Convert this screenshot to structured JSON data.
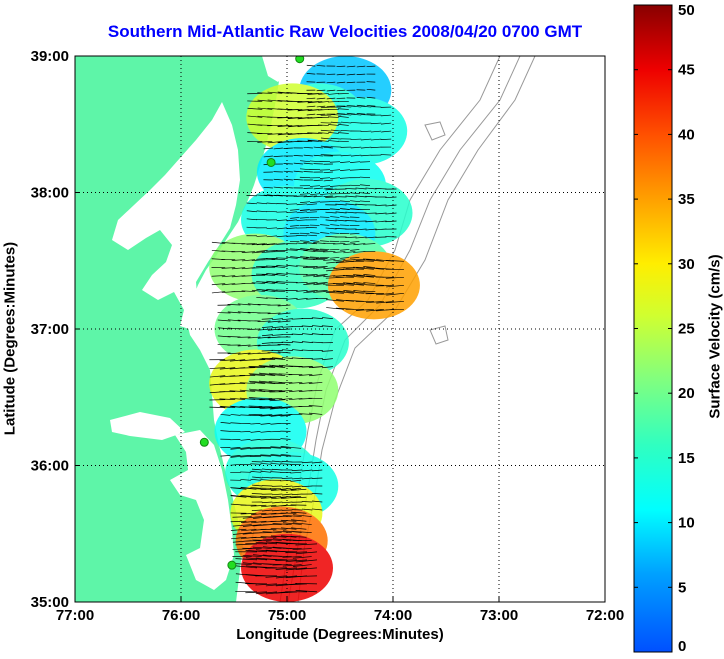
{
  "chart_data": {
    "type": "heatmap",
    "title": "Southern Mid-Atlantic Raw Velocities 2008/04/20 0700 GMT",
    "xlabel": "Longitude (Degrees:Minutes)",
    "ylabel": "Latitude (Degrees:Minutes)",
    "colorbar_label": "Surface Velocity (cm/s)",
    "xlim": [
      -77,
      -72
    ],
    "ylim": [
      35,
      39
    ],
    "x_ticks": [
      {
        "value": -77,
        "label": "77:00"
      },
      {
        "value": -76,
        "label": "76:00"
      },
      {
        "value": -75,
        "label": "75:00"
      },
      {
        "value": -74,
        "label": "74:00"
      },
      {
        "value": -73,
        "label": "73:00"
      },
      {
        "value": -72,
        "label": "72:00"
      }
    ],
    "y_ticks": [
      {
        "value": 35,
        "label": "35:00"
      },
      {
        "value": 36,
        "label": "36:00"
      },
      {
        "value": 37,
        "label": "37:00"
      },
      {
        "value": 38,
        "label": "38:00"
      },
      {
        "value": 39,
        "label": "39:00"
      }
    ],
    "colorbar_range": [
      0,
      50
    ],
    "colorbar_ticks": [
      0,
      5,
      10,
      15,
      20,
      25,
      30,
      35,
      40,
      45,
      50
    ],
    "grid": true,
    "land_color": "#5ef5a8",
    "station_color": "#22dd22",
    "stations": [
      {
        "lon": -74.88,
        "lat": 38.98
      },
      {
        "lon": -75.15,
        "lat": 38.22
      },
      {
        "lon": -75.78,
        "lat": 36.17
      },
      {
        "lon": -75.52,
        "lat": 35.27
      }
    ],
    "velocity_field": [
      {
        "lon": -74.45,
        "lat": 38.75,
        "speed": 8
      },
      {
        "lon": -74.7,
        "lat": 38.55,
        "speed": 14
      },
      {
        "lon": -74.3,
        "lat": 38.45,
        "speed": 13
      },
      {
        "lon": -74.95,
        "lat": 38.55,
        "speed": 26
      },
      {
        "lon": -74.85,
        "lat": 38.15,
        "speed": 10
      },
      {
        "lon": -74.5,
        "lat": 38.05,
        "speed": 12
      },
      {
        "lon": -74.25,
        "lat": 37.85,
        "speed": 15
      },
      {
        "lon": -75.0,
        "lat": 37.8,
        "speed": 13
      },
      {
        "lon": -74.6,
        "lat": 37.7,
        "speed": 10
      },
      {
        "lon": -75.3,
        "lat": 37.45,
        "speed": 22
      },
      {
        "lon": -74.9,
        "lat": 37.4,
        "speed": 16
      },
      {
        "lon": -74.45,
        "lat": 37.45,
        "speed": 18
      },
      {
        "lon": -74.18,
        "lat": 37.32,
        "speed": 35
      },
      {
        "lon": -75.25,
        "lat": 37.0,
        "speed": 20
      },
      {
        "lon": -74.85,
        "lat": 36.9,
        "speed": 15
      },
      {
        "lon": -75.3,
        "lat": 36.6,
        "speed": 28
      },
      {
        "lon": -74.95,
        "lat": 36.55,
        "speed": 22
      },
      {
        "lon": -75.25,
        "lat": 36.25,
        "speed": 12
      },
      {
        "lon": -75.15,
        "lat": 35.95,
        "speed": 14
      },
      {
        "lon": -74.95,
        "lat": 35.85,
        "speed": 13
      },
      {
        "lon": -75.1,
        "lat": 35.65,
        "speed": 28
      },
      {
        "lon": -75.05,
        "lat": 35.45,
        "speed": 38
      },
      {
        "lon": -75.0,
        "lat": 35.25,
        "speed": 45
      }
    ]
  }
}
